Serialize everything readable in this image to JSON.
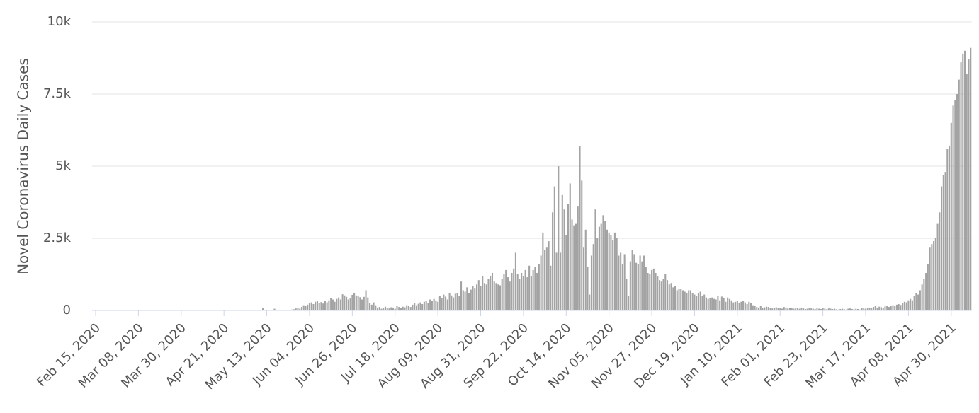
{
  "chart_data": {
    "type": "bar",
    "y_label": "Novel Coronavirus Daily Cases",
    "categories": [
      "Feb 15, 2020",
      null,
      null,
      null,
      null,
      null,
      null,
      null,
      null,
      null,
      null,
      null,
      null,
      null,
      null,
      null,
      null,
      null,
      null,
      null,
      null,
      null,
      "Mar 08, 2020",
      null,
      null,
      null,
      null,
      null,
      null,
      null,
      null,
      null,
      null,
      null,
      null,
      null,
      null,
      null,
      null,
      null,
      null,
      null,
      null,
      null,
      "Mar 30, 2020",
      null,
      null,
      null,
      null,
      null,
      null,
      null,
      null,
      null,
      null,
      null,
      null,
      null,
      null,
      null,
      null,
      null,
      null,
      null,
      null,
      null,
      "Apr 21, 2020",
      null,
      null,
      null,
      null,
      null,
      null,
      null,
      null,
      null,
      null,
      null,
      null,
      null,
      null,
      null,
      null,
      null,
      null,
      null,
      null,
      null,
      "May 13, 2020",
      null,
      null,
      null,
      null,
      null,
      null,
      null,
      null,
      null,
      null,
      null,
      null,
      null,
      null,
      null,
      null,
      null,
      null,
      null,
      null,
      null,
      "Jun 04, 2020",
      null,
      null,
      null,
      null,
      null,
      null,
      null,
      null,
      null,
      null,
      null,
      null,
      null,
      null,
      null,
      null,
      null,
      null,
      null,
      null,
      null,
      "Jun 26, 2020",
      null,
      null,
      null,
      null,
      null,
      null,
      null,
      null,
      null,
      null,
      null,
      null,
      null,
      null,
      null,
      null,
      null,
      null,
      null,
      null,
      null,
      "Jul 18, 2020",
      null,
      null,
      null,
      null,
      null,
      null,
      null,
      null,
      null,
      null,
      null,
      null,
      null,
      null,
      null,
      null,
      null,
      null,
      null,
      null,
      null,
      "Aug 09, 2020",
      null,
      null,
      null,
      null,
      null,
      null,
      null,
      null,
      null,
      null,
      null,
      null,
      null,
      null,
      null,
      null,
      null,
      null,
      null,
      null,
      null,
      "Aug 31, 2020",
      null,
      null,
      null,
      null,
      null,
      null,
      null,
      null,
      null,
      null,
      null,
      null,
      null,
      null,
      null,
      null,
      null,
      null,
      null,
      null,
      null,
      "Sep 22, 2020",
      null,
      null,
      null,
      null,
      null,
      null,
      null,
      null,
      null,
      null,
      null,
      null,
      null,
      null,
      null,
      null,
      null,
      null,
      null,
      null,
      null,
      "Oct 14, 2020",
      null,
      null,
      null,
      null,
      null,
      null,
      null,
      null,
      null,
      null,
      null,
      null,
      null,
      null,
      null,
      null,
      null,
      null,
      null,
      null,
      null,
      "Nov 05, 2020",
      null,
      null,
      null,
      null,
      null,
      null,
      null,
      null,
      null,
      null,
      null,
      null,
      null,
      null,
      null,
      null,
      null,
      null,
      null,
      null,
      null,
      "Nov 27, 2020",
      null,
      null,
      null,
      null,
      null,
      null,
      null,
      null,
      null,
      null,
      null,
      null,
      null,
      null,
      null,
      null,
      null,
      null,
      null,
      null,
      null,
      "Dec 19, 2020",
      null,
      null,
      null,
      null,
      null,
      null,
      null,
      null,
      null,
      null,
      null,
      null,
      null,
      null,
      null,
      null,
      null,
      null,
      null,
      null,
      null,
      "Jan 10, 2021",
      null,
      null,
      null,
      null,
      null,
      null,
      null,
      null,
      null,
      null,
      null,
      null,
      null,
      null,
      null,
      null,
      null,
      null,
      null,
      null,
      null,
      "Feb 01, 2021",
      null,
      null,
      null,
      null,
      null,
      null,
      null,
      null,
      null,
      null,
      null,
      null,
      null,
      null,
      null,
      null,
      null,
      null,
      null,
      null,
      null,
      "Feb 23, 2021",
      null,
      null,
      null,
      null,
      null,
      null,
      null,
      null,
      null,
      null,
      null,
      null,
      null,
      null,
      null,
      null,
      null,
      null,
      null,
      null,
      null,
      "Mar 17, 2021",
      null,
      null,
      null,
      null,
      null,
      null,
      null,
      null,
      null,
      null,
      null,
      null,
      null,
      null,
      null,
      null,
      null,
      null,
      null,
      null,
      null,
      "Apr 08, 2021",
      null,
      null,
      null,
      null,
      null,
      null,
      null,
      null,
      null,
      null,
      null,
      null,
      null,
      null,
      null,
      null,
      null,
      null,
      null,
      null,
      null,
      "Apr 30, 2021",
      null,
      null,
      null,
      null,
      null,
      null,
      null,
      null,
      null,
      null
    ],
    "values": [
      0,
      0,
      0,
      0,
      0,
      0,
      0,
      0,
      0,
      0,
      0,
      0,
      0,
      0,
      0,
      0,
      0,
      0,
      0,
      0,
      0,
      0,
      0,
      0,
      0,
      0,
      0,
      0,
      0,
      0,
      0,
      0,
      0,
      0,
      0,
      0,
      0,
      0,
      0,
      0,
      0,
      0,
      0,
      0,
      0,
      0,
      0,
      0,
      0,
      0,
      0,
      0,
      0,
      0,
      0,
      0,
      0,
      0,
      0,
      0,
      0,
      0,
      0,
      0,
      0,
      0,
      0,
      0,
      0,
      0,
      0,
      0,
      0,
      0,
      0,
      0,
      0,
      0,
      0,
      0,
      0,
      0,
      0,
      0,
      0,
      0,
      80,
      0,
      0,
      0,
      0,
      0,
      60,
      0,
      0,
      0,
      0,
      0,
      0,
      0,
      0,
      30,
      40,
      70,
      90,
      60,
      120,
      180,
      150,
      200,
      250,
      280,
      220,
      300,
      330,
      260,
      290,
      240,
      320,
      280,
      350,
      420,
      380,
      300,
      400,
      450,
      380,
      560,
      520,
      470,
      380,
      440,
      540,
      600,
      520,
      500,
      460,
      380,
      470,
      700,
      450,
      250,
      200,
      280,
      180,
      90,
      120,
      60,
      80,
      130,
      90,
      70,
      110,
      100,
      60,
      150,
      120,
      90,
      130,
      110,
      180,
      150,
      120,
      200,
      250,
      180,
      230,
      280,
      220,
      300,
      330,
      260,
      380,
      320,
      400,
      350,
      300,
      500,
      420,
      550,
      480,
      380,
      600,
      520,
      450,
      580,
      600,
      500,
      1000,
      700,
      650,
      800,
      600,
      720,
      850,
      780,
      900,
      1050,
      850,
      1200,
      950,
      900,
      1100,
      1200,
      1300,
      1000,
      950,
      900,
      870,
      1100,
      1250,
      1400,
      1150,
      1000,
      1300,
      1450,
      2000,
      1250,
      1100,
      1300,
      1200,
      1400,
      1150,
      1550,
      1200,
      1400,
      1500,
      1300,
      1600,
      1900,
      2700,
      2100,
      2200,
      2400,
      1550,
      3400,
      4300,
      2000,
      5000,
      2000,
      4000,
      3500,
      2600,
      3700,
      4400,
      3150,
      2950,
      3000,
      3600,
      5700,
      4500,
      2200,
      2800,
      1500,
      550,
      1900,
      2300,
      3500,
      2500,
      2900,
      3000,
      3300,
      3100,
      2800,
      2700,
      2600,
      2450,
      2700,
      2500,
      1900,
      2000,
      1600,
      1950,
      1100,
      500,
      1700,
      2100,
      1950,
      1650,
      1600,
      1900,
      1700,
      1900,
      1500,
      1300,
      1250,
      1400,
      1450,
      1300,
      1200,
      1050,
      1000,
      1100,
      1250,
      1050,
      900,
      950,
      800,
      850,
      700,
      750,
      750,
      700,
      650,
      600,
      700,
      700,
      600,
      550,
      500,
      600,
      650,
      500,
      550,
      450,
      400,
      420,
      450,
      400,
      380,
      500,
      350,
      480,
      420,
      300,
      450,
      400,
      350,
      280,
      300,
      320,
      250,
      300,
      330,
      280,
      220,
      300,
      250,
      180,
      160,
      120,
      100,
      150,
      90,
      110,
      130,
      120,
      80,
      70,
      100,
      110,
      90,
      80,
      60,
      120,
      100,
      70,
      80,
      90,
      60,
      70,
      80,
      60,
      90,
      70,
      50,
      60,
      80,
      70,
      60,
      50,
      70,
      60,
      50,
      80,
      60,
      40,
      70,
      60,
      50,
      60,
      40,
      30,
      50,
      60,
      40,
      30,
      60,
      70,
      50,
      40,
      60,
      50,
      30,
      80,
      70,
      60,
      90,
      100,
      80,
      120,
      150,
      100,
      130,
      110,
      90,
      140,
      160,
      120,
      150,
      180,
      170,
      200,
      220,
      190,
      250,
      300,
      280,
      350,
      400,
      350,
      500,
      600,
      550,
      700,
      900,
      1100,
      1300,
      1600,
      2200,
      2300,
      2400,
      2500,
      3000,
      3400,
      4300,
      4700,
      4800,
      5600,
      5700,
      6500,
      7100,
      7300,
      7500,
      8000,
      8600,
      8900,
      9000,
      8200,
      8700,
      9100
    ],
    "color": "#a3a3a3",
    "ylim": [
      0,
      10000
    ],
    "yticks": [
      0,
      {
        "value": 2500,
        "label": "2.5k"
      },
      {
        "value": 5000,
        "label": "5k"
      },
      {
        "value": 7500,
        "label": "7.5k"
      },
      {
        "value": 10000,
        "label": "10k"
      }
    ],
    "grid": true
  }
}
